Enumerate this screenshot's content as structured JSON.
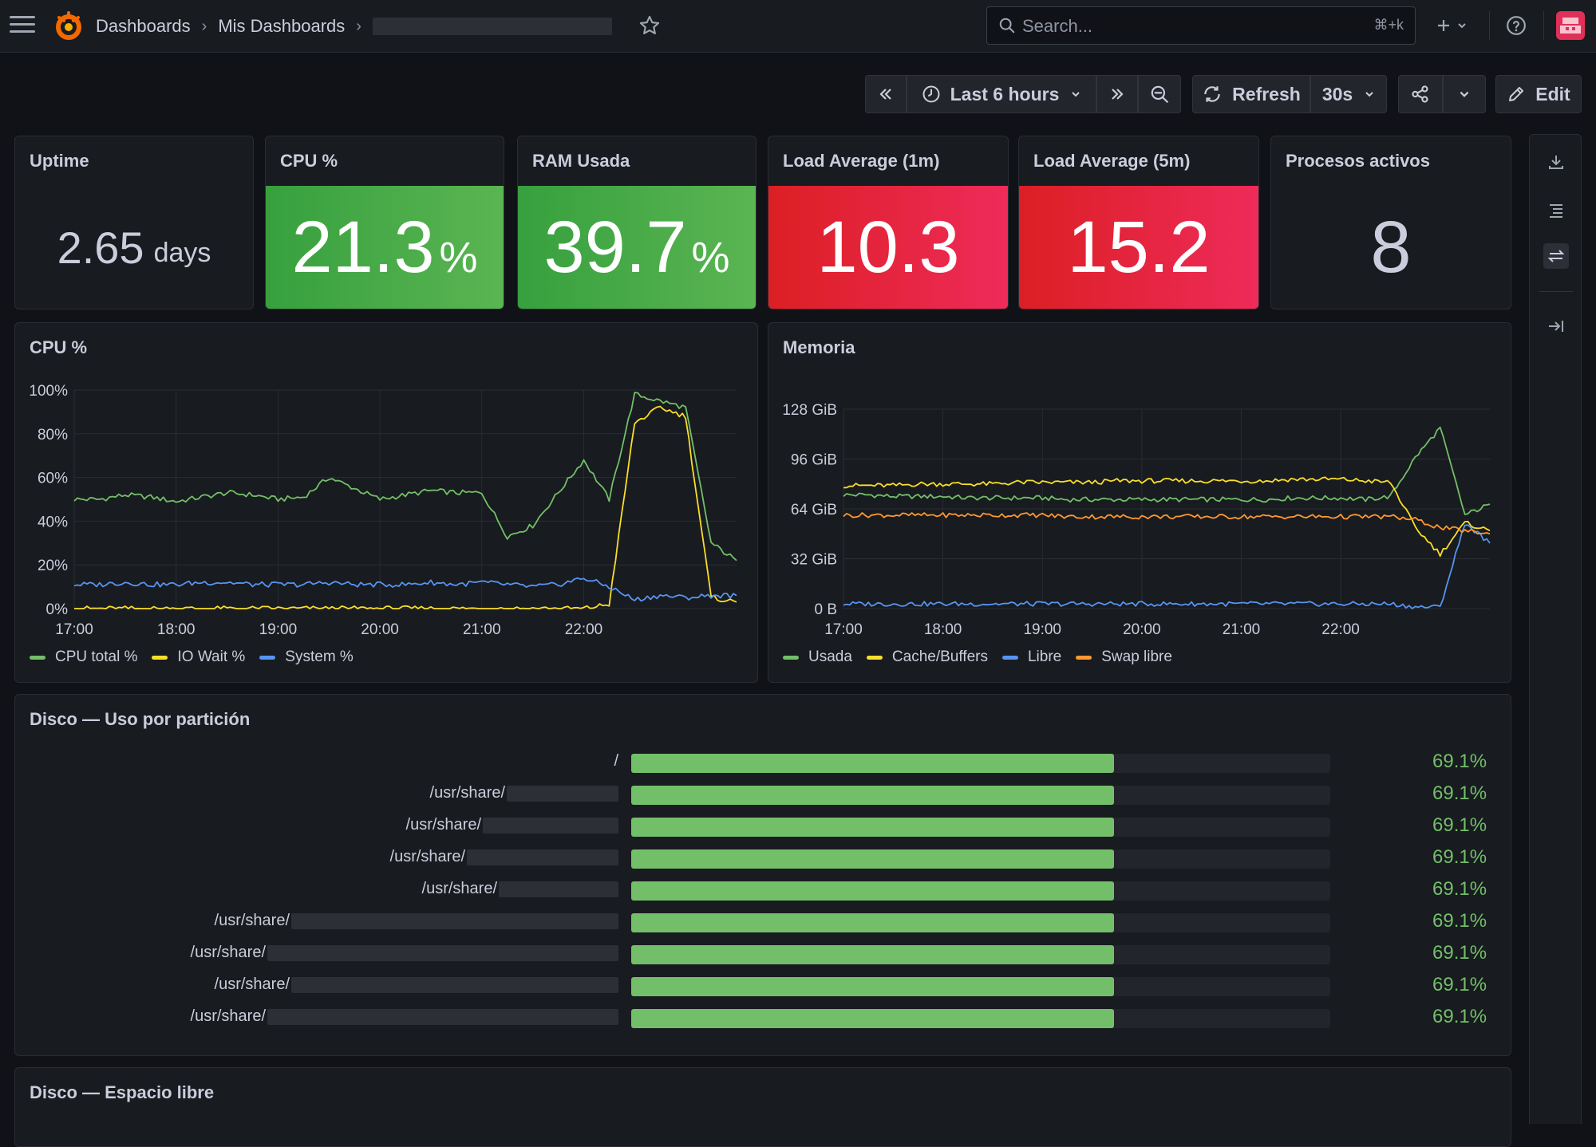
{
  "nav": {
    "breadcrumb": [
      "Dashboards",
      "Mis Dashboards"
    ],
    "search_placeholder": "Search...",
    "search_shortcut": "⌘+k",
    "plus_icon": "plus-icon",
    "help_icon": "help-icon"
  },
  "toolbar": {
    "time_range": "Last 6 hours",
    "refresh_label": "Refresh",
    "refresh_interval": "30s",
    "edit_label": "Edit"
  },
  "stats": {
    "uptime": {
      "title": "Uptime",
      "value": "2.65",
      "unit": "days"
    },
    "cpu": {
      "title": "CPU %",
      "value": "21.3",
      "unit": "%",
      "color": "#56b14f"
    },
    "ram": {
      "title": "RAM Usada",
      "value": "39.7",
      "unit": "%",
      "color": "#56b14f"
    },
    "load1": {
      "title": "Load Average (1m)",
      "value": "10.3",
      "color": "#e31f3a"
    },
    "load5": {
      "title": "Load Average (5m)",
      "value": "15.2",
      "color": "#e31f3a"
    },
    "procs": {
      "title": "Procesos activos",
      "value": "8"
    }
  },
  "cpu_chart": {
    "title": "CPU %",
    "chart_data": {
      "type": "line",
      "x": [
        "17:00",
        "17:15",
        "17:30",
        "17:45",
        "18:00",
        "18:15",
        "18:30",
        "18:45",
        "19:00",
        "19:15",
        "19:30",
        "19:45",
        "20:00",
        "20:15",
        "20:30",
        "20:45",
        "21:00",
        "21:15",
        "21:30",
        "21:45",
        "22:00",
        "22:10",
        "22:20",
        "22:30",
        "22:40",
        "22:50",
        "22:58"
      ],
      "xticks": [
        "17:00",
        "18:00",
        "19:00",
        "20:00",
        "21:00",
        "22:00"
      ],
      "yticks": [
        "0%",
        "20%",
        "40%",
        "60%",
        "80%",
        "100%"
      ],
      "ylim": [
        0,
        100
      ],
      "series": [
        {
          "name": "CPU total %",
          "color": "#73bf69",
          "values": [
            50,
            50,
            52,
            51,
            49,
            51,
            53,
            52,
            50,
            51,
            60,
            55,
            50,
            52,
            54,
            53,
            53,
            33,
            38,
            53,
            68,
            50,
            98,
            95,
            92,
            30,
            22
          ]
        },
        {
          "name": "IO Wait %",
          "color": "#fade2a",
          "values": [
            0,
            0,
            0,
            0,
            0,
            0,
            0,
            0,
            0,
            0,
            0,
            0,
            0,
            0,
            0,
            0,
            0,
            0,
            0,
            0,
            0,
            2,
            85,
            92,
            88,
            5,
            3
          ]
        },
        {
          "name": "System %",
          "color": "#5794f2",
          "values": [
            11,
            11,
            12,
            11,
            11,
            12,
            12,
            11,
            11,
            11,
            12,
            11,
            11,
            11,
            12,
            11,
            12,
            11,
            10,
            11,
            14,
            10,
            4,
            6,
            5,
            6,
            6
          ]
        }
      ]
    }
  },
  "mem_chart": {
    "title": "Memoria",
    "chart_data": {
      "type": "line",
      "x": [
        "17:00",
        "17:15",
        "17:30",
        "17:45",
        "18:00",
        "18:15",
        "18:30",
        "18:45",
        "19:00",
        "19:15",
        "19:30",
        "19:45",
        "20:00",
        "20:15",
        "20:30",
        "20:45",
        "21:00",
        "21:15",
        "21:30",
        "21:45",
        "22:00",
        "22:15",
        "22:30",
        "22:35",
        "22:40",
        "22:45",
        "22:52"
      ],
      "xticks": [
        "17:00",
        "18:00",
        "19:00",
        "20:00",
        "21:00",
        "22:00"
      ],
      "yticks": [
        "0 B",
        "32 GiB",
        "64 GiB",
        "96 GiB",
        "128 GiB"
      ],
      "ylim": [
        0,
        128
      ],
      "series": [
        {
          "name": "Usada",
          "color": "#73bf69",
          "values": [
            73,
            73,
            72,
            72,
            72,
            71,
            71,
            71,
            71,
            70,
            70,
            70,
            70,
            70,
            70,
            70,
            70,
            70,
            71,
            71,
            71,
            70,
            72,
            97,
            116,
            60,
            67
          ]
        },
        {
          "name": "Cache/Buffers",
          "color": "#fade2a",
          "values": [
            79,
            79,
            79,
            80,
            80,
            80,
            80,
            81,
            81,
            81,
            81,
            82,
            82,
            82,
            82,
            82,
            82,
            82,
            83,
            83,
            83,
            82,
            81,
            52,
            35,
            55,
            50
          ]
        },
        {
          "name": "Libre",
          "color": "#5794f2",
          "values": [
            3,
            3,
            3,
            3,
            3,
            3,
            3,
            3,
            3,
            3,
            3,
            3,
            3,
            3,
            3,
            3,
            3,
            3,
            3,
            3,
            3,
            3,
            3,
            1,
            1,
            55,
            42
          ]
        },
        {
          "name": "Swap libre",
          "color": "#ff9830",
          "values": [
            60,
            60,
            60,
            60,
            60,
            60,
            60,
            60,
            60,
            59,
            59,
            59,
            59,
            59,
            59,
            59,
            59,
            59,
            59,
            59,
            59,
            59,
            59,
            57,
            52,
            50,
            48
          ]
        }
      ]
    }
  },
  "disk_usage": {
    "title": "Disco — Uso por partición",
    "rows": [
      {
        "label": "/",
        "value": 69.1,
        "display": "69.1%"
      },
      {
        "label": "/usr/share/",
        "value": 69.1,
        "display": "69.1%"
      },
      {
        "label": "/usr/share/",
        "value": 69.1,
        "display": "69.1%"
      },
      {
        "label": "/usr/share/",
        "value": 69.1,
        "display": "69.1%"
      },
      {
        "label": "/usr/share/",
        "value": 69.1,
        "display": "69.1%"
      },
      {
        "label": "/usr/share/",
        "value": 69.1,
        "display": "69.1%"
      },
      {
        "label": "/usr/share/",
        "value": 69.1,
        "display": "69.1%"
      },
      {
        "label": "/usr/share/",
        "value": 69.1,
        "display": "69.1%"
      },
      {
        "label": "/usr/share/",
        "value": 69.1,
        "display": "69.1%"
      }
    ],
    "bar_color": "#73bf69"
  },
  "disk_free": {
    "title": "Disco — Espacio libre"
  }
}
